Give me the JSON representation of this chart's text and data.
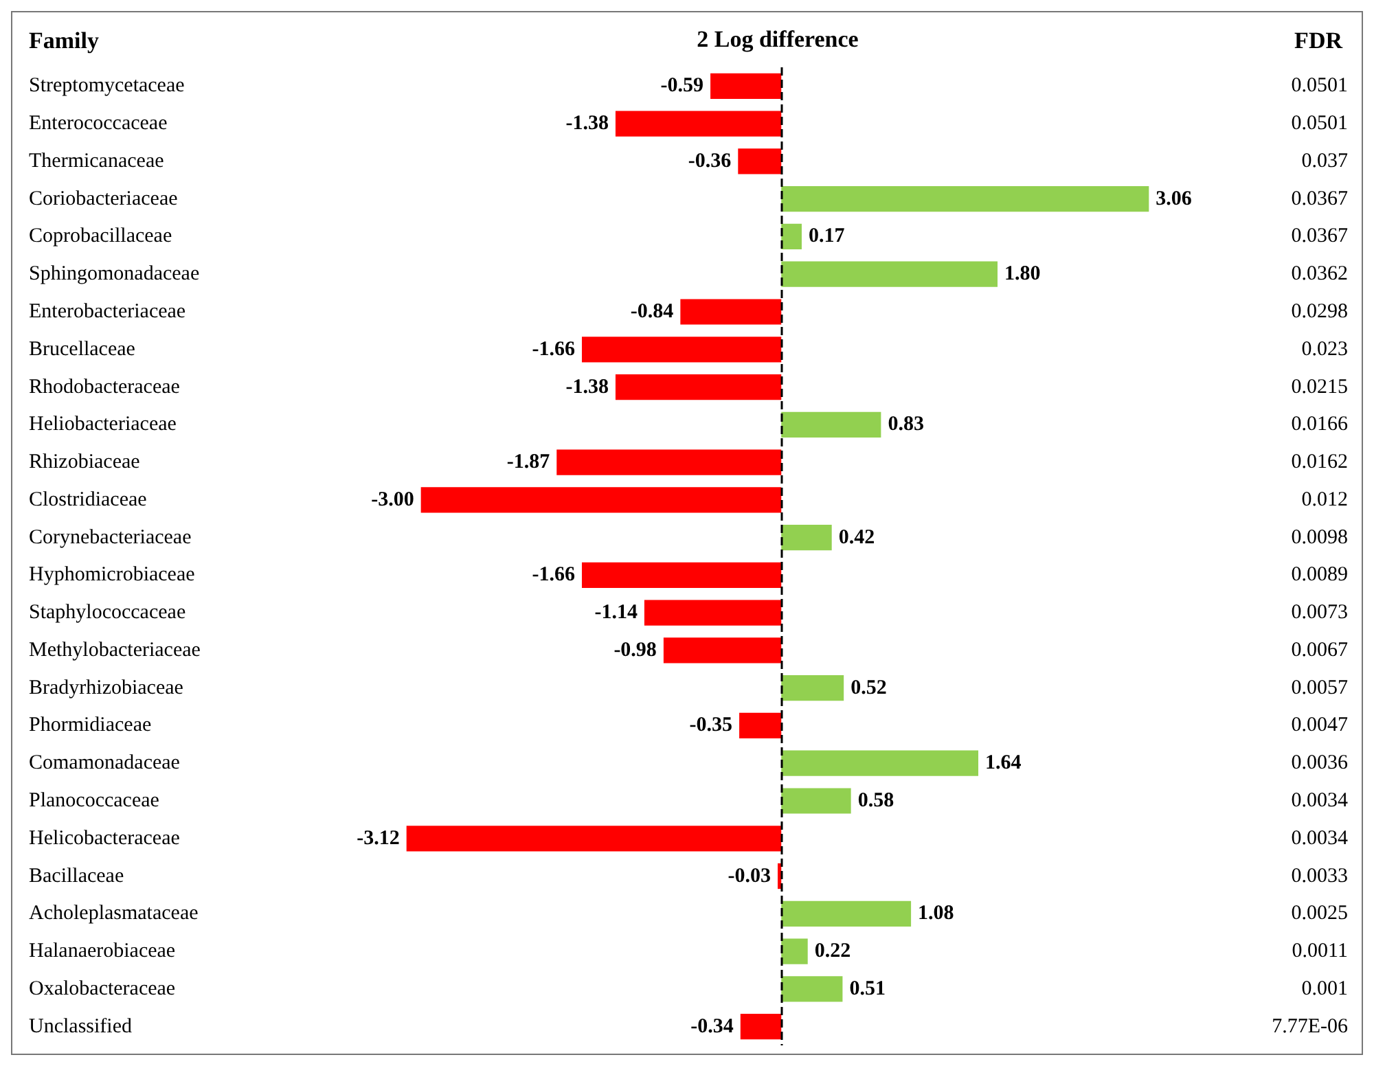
{
  "chart_data": {
    "type": "bar",
    "orientation": "horizontal",
    "xlabel": "2 Log difference",
    "ylabel": "Family",
    "categories": [
      "Streptomycetaceae",
      "Enterococcaceae",
      "Thermicanaceae",
      "Coriobacteriaceae",
      "Coprobacillaceae",
      "Sphingomonadaceae",
      "Enterobacteriaceae",
      "Brucellaceae",
      "Rhodobacteraceae",
      "Heliobacteriaceae",
      "Rhizobiaceae",
      "Clostridiaceae",
      "Corynebacteriaceae",
      "Hyphomicrobiaceae",
      "Staphylococcaceae",
      "Methylobacteriaceae",
      "Bradyrhizobiaceae",
      "Phormidiaceae",
      "Comamonadaceae",
      "Planococcaceae",
      "Helicobacteraceae",
      "Bacillaceae",
      "Acholeplasmataceae",
      "Halanaerobiaceae",
      "Oxalobacteraceae",
      "Unclassified"
    ],
    "y2_categories": [
      "0.0501",
      "0.0501",
      "0.037",
      "0.0367",
      "0.0367",
      "0.0362",
      "0.0298",
      "0.023",
      "0.0215",
      "0.0166",
      "0.0162",
      "0.012",
      "0.0098",
      "0.0089",
      "0.0073",
      "0.0067",
      "0.0057",
      "0.0047",
      "0.0036",
      "0.0034",
      "0.0034",
      "0.0033",
      "0.0025",
      "0.0011",
      "0.001",
      "7.77E-06"
    ],
    "values": [
      -0.59,
      -1.38,
      -0.36,
      3.06,
      0.17,
      1.8,
      -0.84,
      -1.66,
      -1.38,
      0.83,
      -1.87,
      -3.0,
      0.42,
      -1.66,
      -1.14,
      -0.98,
      0.52,
      -0.35,
      1.64,
      0.58,
      -3.12,
      -0.03,
      1.08,
      0.22,
      0.51,
      -0.34
    ],
    "value_labels": [
      "-0.59",
      "-1.38",
      "-0.36",
      "3.06",
      "0.17",
      "1.80",
      "-0.84",
      "-1.66",
      "-1.38",
      "0.83",
      "-1.87",
      "-3.00",
      "0.42",
      "-1.66",
      "-1.14",
      "-0.98",
      "0.52",
      "-0.35",
      "1.64",
      "0.58",
      "-3.12",
      "-0.03",
      "1.08",
      "0.22",
      "0.51",
      "-0.34"
    ],
    "colors": [
      "#ff0000",
      "#ff0000",
      "#ff0000",
      "#92d050",
      "#92d050",
      "#92d050",
      "#ff0000",
      "#ff0000",
      "#ff0000",
      "#92d050",
      "#ff0000",
      "#ff0000",
      "#92d050",
      "#ff0000",
      "#ff0000",
      "#ff0000",
      "#92d050",
      "#ff0000",
      "#92d050",
      "#92d050",
      "#ff0000",
      "#ff0000",
      "#92d050",
      "#92d050",
      "#92d050",
      "#ff0000"
    ],
    "ref_lines": [
      {
        "axis": "x",
        "value": 0,
        "line_style": "dashed",
        "color": "#000000"
      }
    ],
    "annotations": [
      "FDR"
    ],
    "grid": false
  }
}
